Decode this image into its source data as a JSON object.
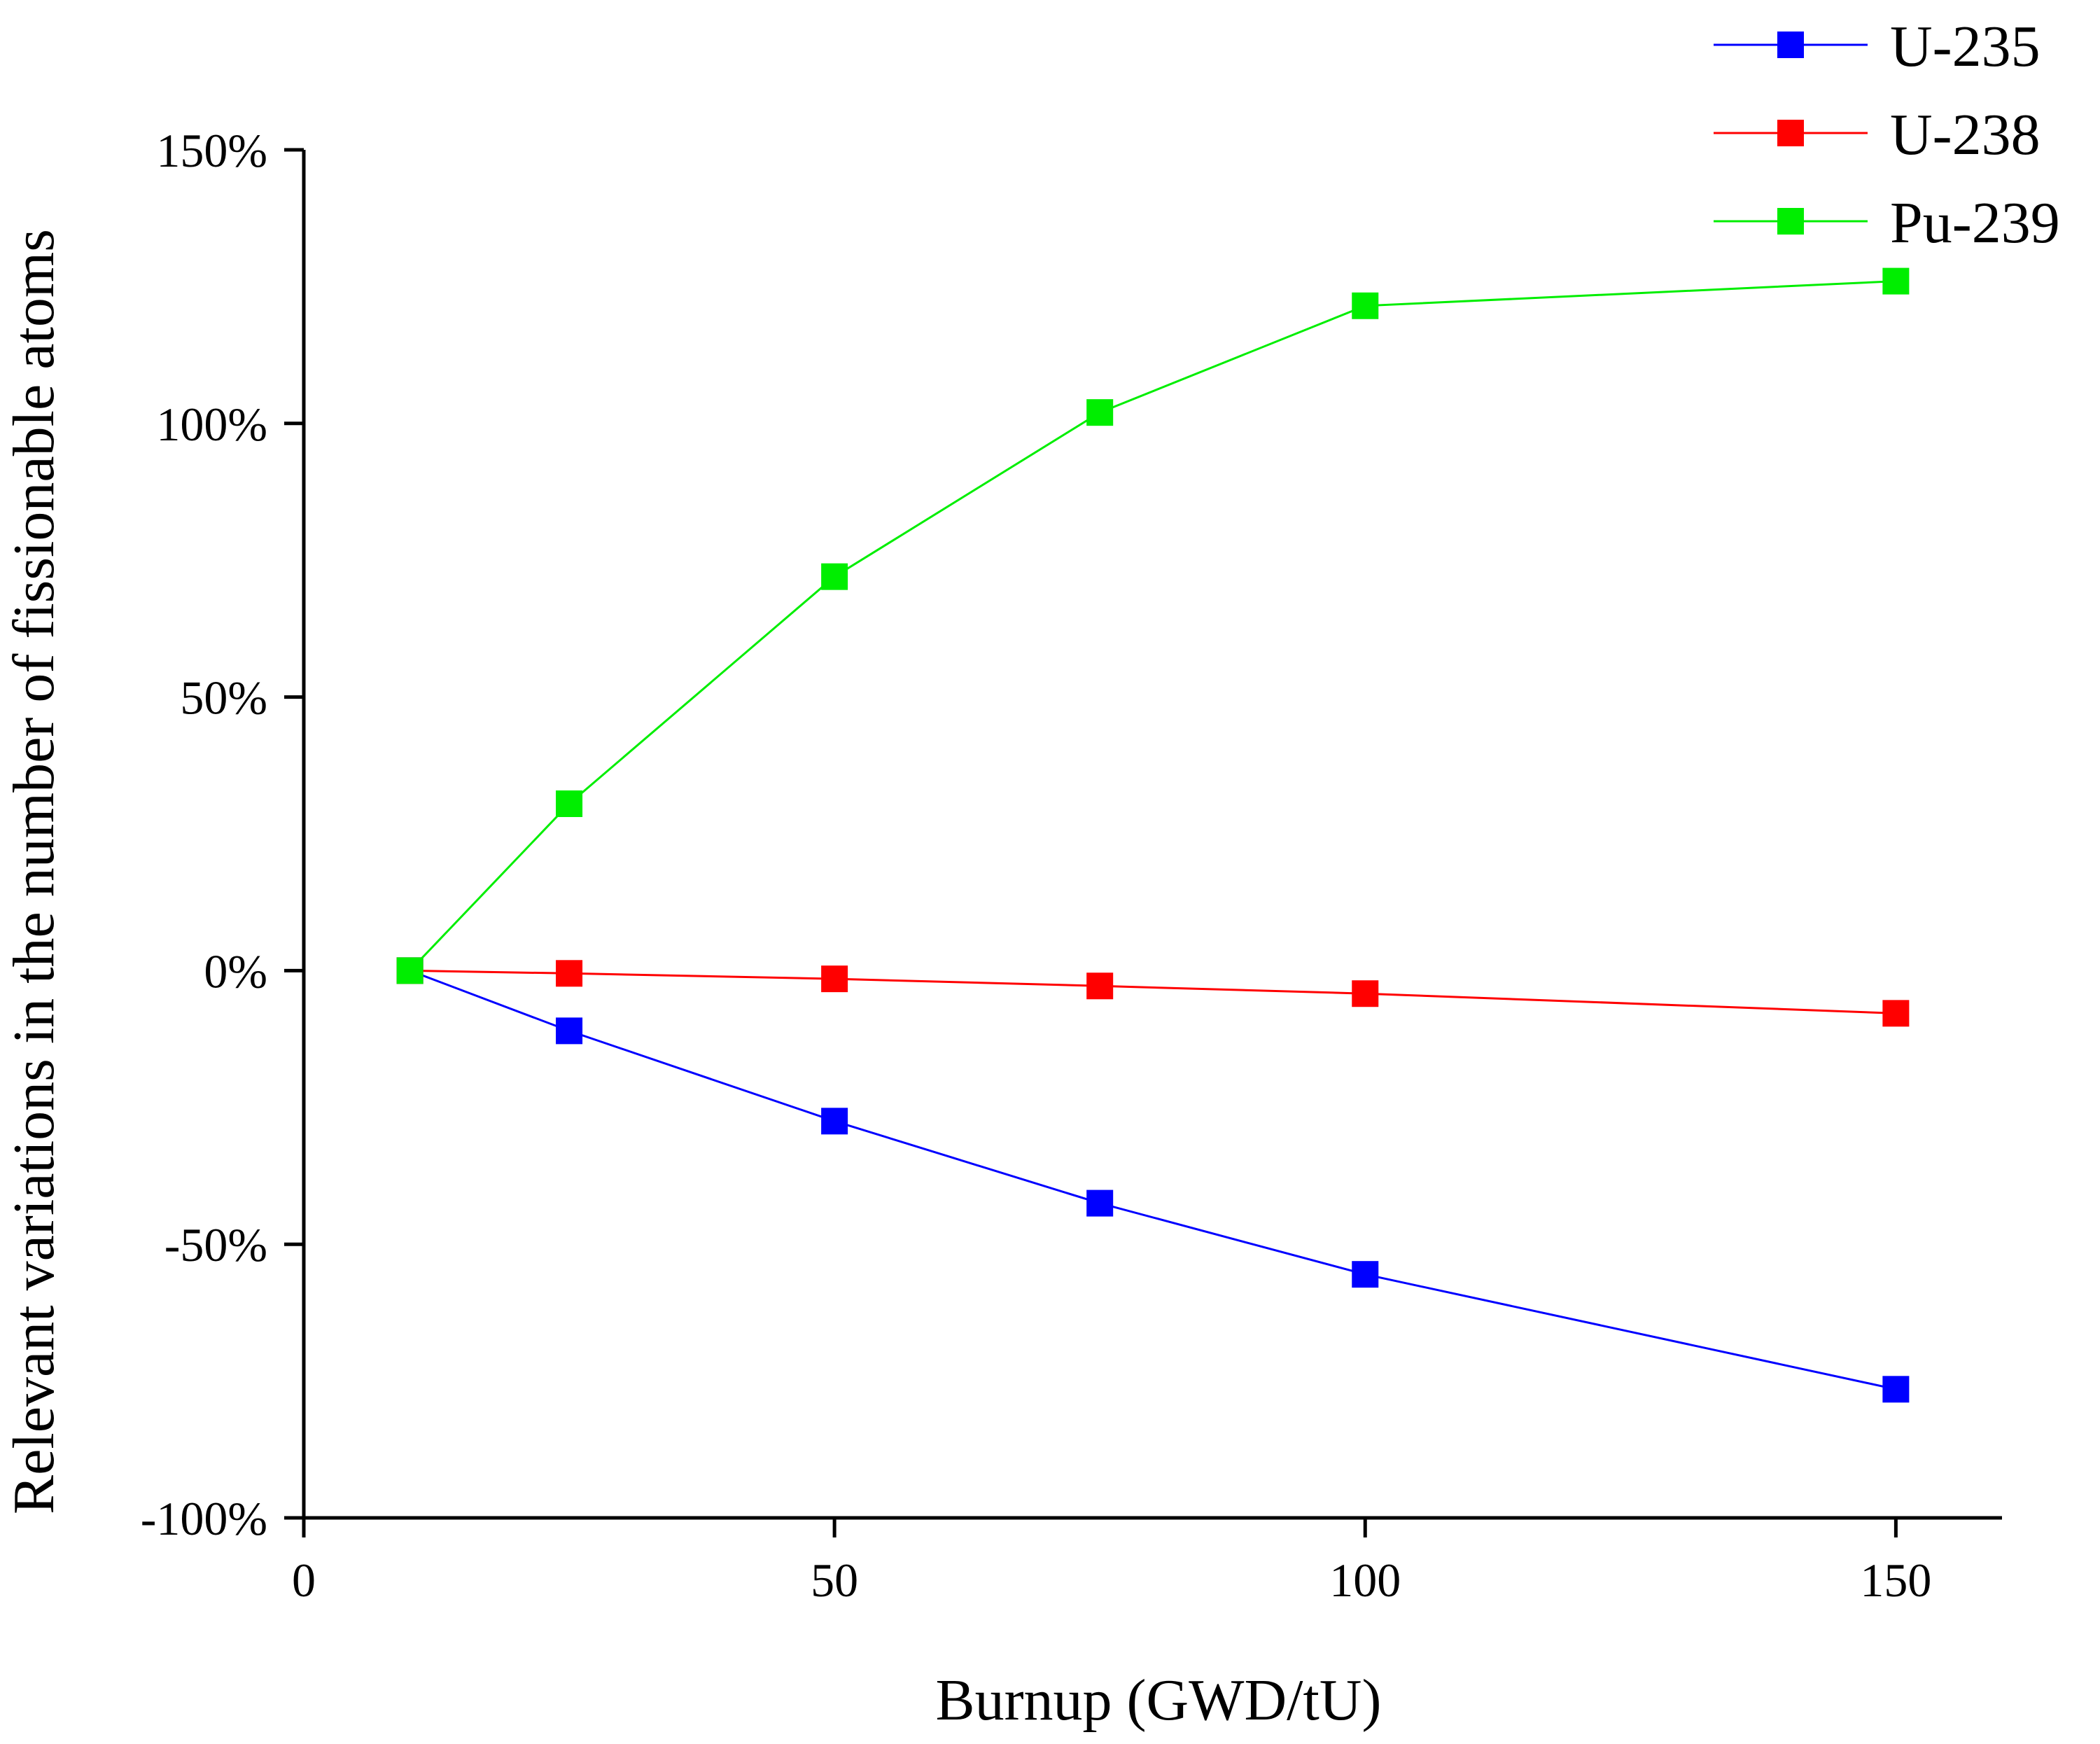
{
  "chart_data": {
    "type": "line",
    "title": "",
    "xlabel": "Burnup (GWD/tU)",
    "ylabel": "Relevant variations in the number of fissionable atoms",
    "xlim": [
      0,
      160
    ],
    "ylim": [
      -100,
      150
    ],
    "xticks": [
      0,
      50,
      100,
      150
    ],
    "xtick_labels": [
      "0",
      "50",
      "100",
      "150"
    ],
    "yticks": [
      -100,
      -50,
      0,
      50,
      100,
      150
    ],
    "ytick_labels": [
      "-100%",
      "-50%",
      "0%",
      "50%",
      "100%",
      "150%"
    ],
    "grid": false,
    "legend_position": "top-right",
    "x": [
      10,
      25,
      50,
      75,
      100,
      150
    ],
    "series": [
      {
        "name": "U-235",
        "color": "#0000ff",
        "values": [
          0,
          -11,
          -27.5,
          -42.5,
          -55.5,
          -76.5
        ]
      },
      {
        "name": "U-238",
        "color": "#ff0000",
        "values": [
          0,
          -0.5,
          -1.5,
          -2.8,
          -4.2,
          -7.8
        ]
      },
      {
        "name": "Pu-239",
        "color": "#00ee00",
        "values": [
          0,
          30.5,
          72,
          102,
          121.5,
          126
        ]
      }
    ]
  }
}
